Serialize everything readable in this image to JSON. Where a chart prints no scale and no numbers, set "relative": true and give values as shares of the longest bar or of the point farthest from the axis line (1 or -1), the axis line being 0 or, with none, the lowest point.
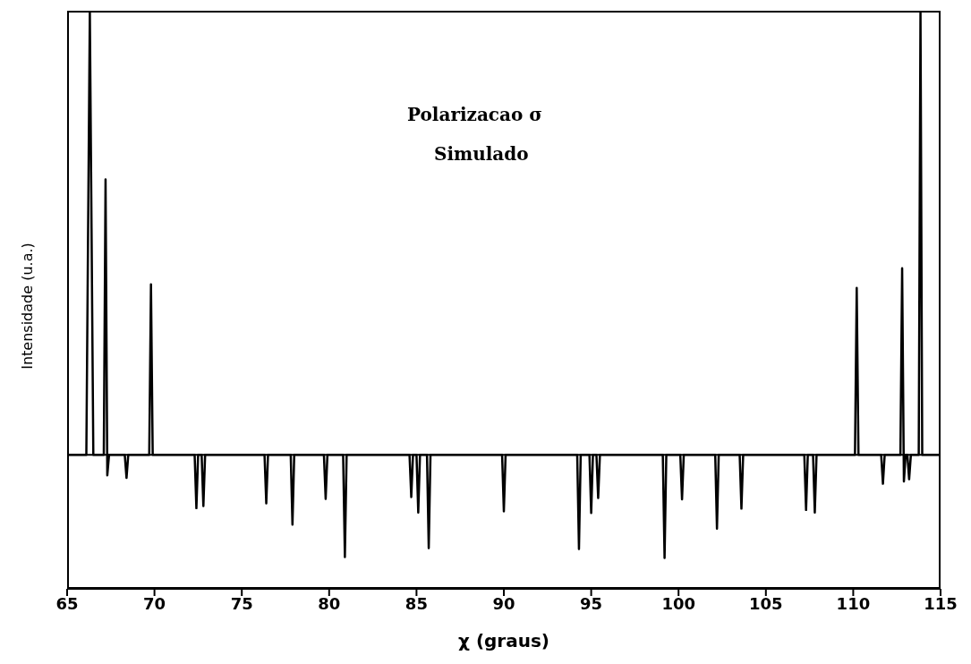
{
  "chart_data": {
    "type": "line",
    "title": "Polarizacao σ",
    "subtitle": "Simulado",
    "xlabel": "χ    (graus)",
    "ylabel": "Intensidade (u.a.)",
    "relative": true,
    "xlim": [
      65,
      115
    ],
    "xticks": [
      65,
      70,
      75,
      80,
      85,
      90,
      95,
      100,
      105,
      110,
      115
    ],
    "series": [
      {
        "color": "#000000",
        "x": [
          65,
          66.1,
          66.3,
          66.5,
          67.1,
          67.2,
          67.3,
          67.4,
          68.3,
          68.4,
          68.5,
          69.7,
          69.8,
          69.9,
          72.3,
          72.4,
          72.5,
          72.7,
          72.8,
          72.9,
          76.3,
          76.4,
          76.5,
          77.8,
          77.9,
          78.0,
          79.7,
          79.8,
          79.9,
          80.8,
          80.9,
          81.0,
          84.6,
          84.7,
          84.8,
          85.0,
          85.1,
          85.2,
          85.6,
          85.7,
          85.8,
          89.9,
          90.0,
          90.1,
          94.2,
          94.3,
          94.4,
          94.9,
          95.0,
          95.1,
          95.3,
          95.4,
          95.5,
          99.1,
          99.2,
          99.3,
          100.1,
          100.2,
          100.3,
          102.1,
          102.2,
          102.3,
          103.5,
          103.6,
          103.7,
          107.2,
          107.3,
          107.4,
          107.7,
          107.8,
          107.9,
          110.1,
          110.2,
          110.3,
          111.6,
          111.7,
          111.8,
          112.7,
          112.8,
          112.9,
          113.0,
          113.1,
          113.2,
          113.3,
          113.75,
          113.85,
          113.95,
          115
        ],
        "values": [
          0,
          0,
          1,
          0,
          0,
          0.62,
          -0.046,
          0,
          0,
          -0.052,
          0,
          0,
          0.384,
          0,
          0,
          -0.12,
          0,
          0,
          -0.115,
          0,
          0,
          -0.109,
          0,
          0,
          -0.157,
          0,
          0,
          -0.099,
          0,
          0,
          -0.23,
          0,
          0,
          -0.095,
          0,
          0,
          -0.13,
          0,
          0,
          -0.21,
          0,
          0,
          -0.127,
          0,
          0,
          -0.212,
          0,
          0,
          -0.131,
          0,
          0,
          -0.097,
          0,
          0,
          -0.232,
          0,
          0,
          -0.1,
          0,
          0,
          -0.166,
          0,
          0,
          -0.121,
          0,
          0,
          -0.124,
          0,
          0,
          -0.13,
          0,
          0,
          0.376,
          0,
          0,
          -0.065,
          0,
          0,
          0.42,
          -0.06,
          0,
          0,
          -0.055,
          0,
          0,
          1,
          0,
          0
        ]
      }
    ]
  }
}
